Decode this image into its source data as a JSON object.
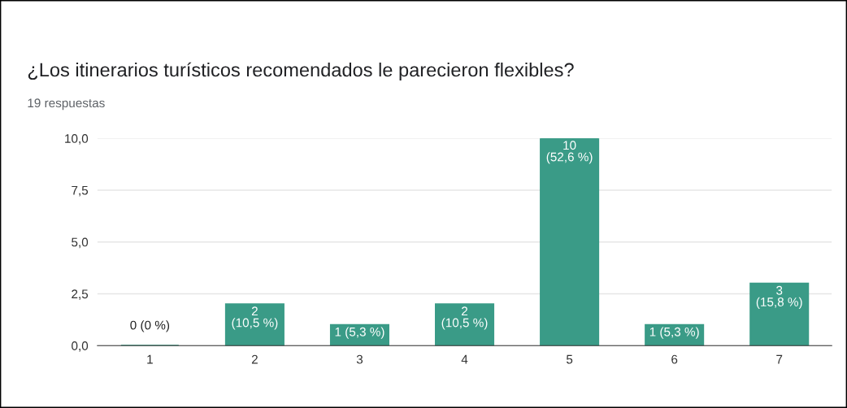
{
  "chart_data": {
    "type": "bar",
    "title": "¿Los itinerarios turísticos recomendados le parecieron flexibles?",
    "subtitle": "19 respuestas",
    "categories": [
      "1",
      "2",
      "3",
      "4",
      "5",
      "6",
      "7"
    ],
    "values": [
      0,
      2,
      1,
      2,
      10,
      1,
      3
    ],
    "value_labels": [
      "0 (0 %)",
      "2\n(10,5 %)",
      "1 (5,3 %)",
      "2\n(10,5 %)",
      "10\n(52,6 %)",
      "1 (5,3 %)",
      "3\n(15,8 %)"
    ],
    "color": "#3a9b87",
    "ylim": [
      0,
      10
    ],
    "yticks": [
      {
        "value": 0,
        "label": "0,0"
      },
      {
        "value": 2.5,
        "label": "2,5"
      },
      {
        "value": 5,
        "label": "5,0"
      },
      {
        "value": 7.5,
        "label": "7,5"
      },
      {
        "value": 10,
        "label": "10,0"
      }
    ],
    "grid": "y",
    "legend": false
  }
}
